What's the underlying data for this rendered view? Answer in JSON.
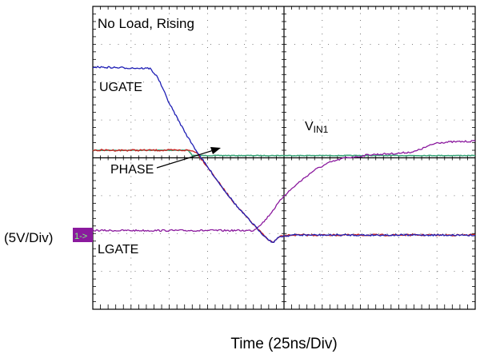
{
  "chart_data": {
    "type": "line",
    "title": "No Load, Rising",
    "xlabel": "Time (25ns/Div)",
    "ylabel": "(5V/Div)",
    "x_unit": "ns",
    "y_unit": "V",
    "x_divisions": 10,
    "y_divisions": 8,
    "xlim": [
      0,
      250
    ],
    "ylim": [
      -20,
      20
    ],
    "grid": true,
    "ground_marker": "1->",
    "series": [
      {
        "name": "UGATE",
        "color": "#1f1fb5",
        "x": [
          0,
          37.5,
          42.5,
          50,
          57.5,
          62.5,
          67.5,
          75,
          85,
          95,
          105,
          112.5,
          117.5,
          122.5,
          130,
          250
        ],
        "y": [
          12.0,
          11.8,
          10.6,
          7.2,
          4.4,
          2.6,
          1.0,
          -1.2,
          -4.0,
          -6.6,
          -8.8,
          -10.4,
          -11.2,
          -10.4,
          -10.2,
          -10.2
        ]
      },
      {
        "name": "PHASE",
        "color": "#c8201e",
        "x": [
          0,
          62.5,
          67.5,
          75,
          85,
          95,
          105,
          112.5,
          117.5,
          122.5,
          130,
          250
        ],
        "y": [
          1.0,
          1.0,
          0.8,
          -1.2,
          -4.0,
          -6.6,
          -8.8,
          -10.4,
          -11.2,
          -10.4,
          -10.2,
          -10.2
        ]
      },
      {
        "name": "V",
        "label_sub": "IN1",
        "color": "#3aa67a",
        "x": [
          0,
          62.5,
          65,
          250
        ],
        "y": [
          1.0,
          1.0,
          0.3,
          0.3
        ]
      },
      {
        "name": "LGATE",
        "color": "#8b1a9e",
        "x": [
          0,
          105,
          112,
          116,
          125,
          135,
          145,
          155,
          165,
          175,
          180,
          190,
          200,
          210,
          217.5,
          225,
          235,
          250
        ],
        "y": [
          -9.6,
          -9.6,
          -8.4,
          -7.4,
          -5.0,
          -3.2,
          -1.6,
          -0.6,
          0.0,
          0.2,
          0.4,
          0.5,
          0.6,
          0.8,
          1.4,
          2.0,
          2.1,
          2.2
        ]
      }
    ],
    "annotations": [
      {
        "text": "UGATE"
      },
      {
        "text": "PHASE"
      },
      {
        "text": "V",
        "sub": "IN1"
      },
      {
        "text": "LGATE"
      }
    ]
  }
}
